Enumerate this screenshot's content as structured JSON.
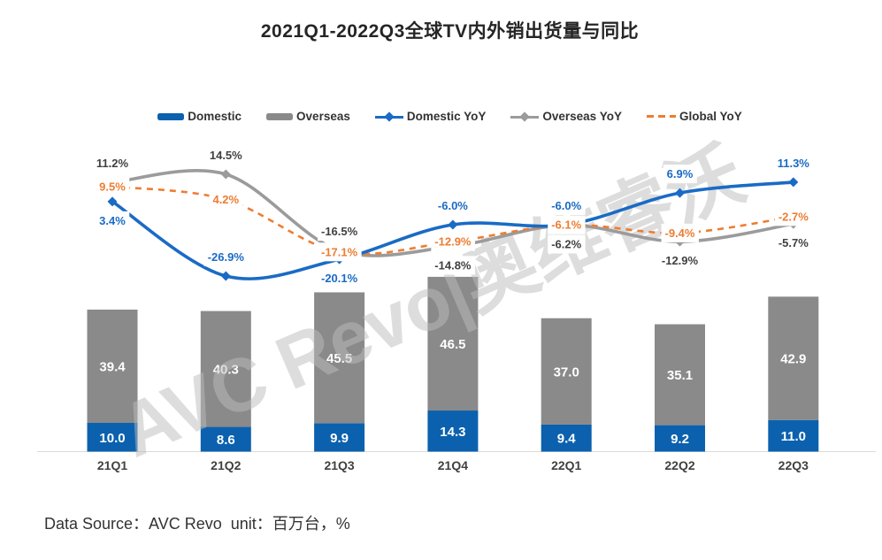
{
  "title": "2021Q1-2022Q3全球TV内外销出货量与同比",
  "watermark": "AVC Revo|奥维睿沃",
  "footer": "Data Source：AVC Revo  unit：百万台，%",
  "colors": {
    "domestic_bar": "#0B61AE",
    "overseas_bar": "#8A8A8A",
    "domestic_line": "#1A6BC4",
    "overseas_line": "#9B9B9B",
    "global_line": "#ED7D31",
    "dark_label": "#404040",
    "axis_line": "#D9D9D9",
    "bar_value_text": "#FFFFFF"
  },
  "legend": {
    "items": [
      {
        "label": "Domestic",
        "type": "bar",
        "color": "#0B61AE"
      },
      {
        "label": "Overseas",
        "type": "bar",
        "color": "#8A8A8A"
      },
      {
        "label": "Domestic YoY",
        "type": "line",
        "color": "#1A6BC4"
      },
      {
        "label": "Overseas YoY",
        "type": "line",
        "color": "#9B9B9B"
      },
      {
        "label": "Global YoY",
        "type": "dash",
        "color": "#ED7D31"
      }
    ]
  },
  "chart_data": {
    "type": "bar+line",
    "categories": [
      "21Q1",
      "21Q2",
      "21Q3",
      "21Q4",
      "22Q1",
      "22Q2",
      "22Q3"
    ],
    "series": [
      {
        "name": "Domestic",
        "type": "bar",
        "stack": "total",
        "values": [
          10.0,
          8.6,
          9.9,
          14.3,
          9.4,
          9.2,
          11.0
        ]
      },
      {
        "name": "Overseas",
        "type": "bar",
        "stack": "total",
        "values": [
          39.4,
          40.3,
          45.5,
          46.5,
          37.0,
          35.1,
          42.9
        ]
      },
      {
        "name": "Domestic YoY",
        "type": "line",
        "unit": "%",
        "values": [
          3.4,
          -26.9,
          -20.1,
          -6.0,
          -6.0,
          6.9,
          11.3
        ],
        "label_pos": [
          "below",
          "above",
          "below",
          "above",
          "above",
          "above",
          "above"
        ]
      },
      {
        "name": "Overseas YoY",
        "type": "line",
        "unit": "%",
        "values": [
          11.2,
          14.5,
          -16.5,
          -14.8,
          -6.2,
          -12.9,
          -5.7
        ],
        "label_pos": [
          "above",
          "above",
          "above",
          "below",
          "below",
          "below",
          "below"
        ]
      },
      {
        "name": "Global YoY",
        "type": "line",
        "dashed": true,
        "unit": "%",
        "values": [
          9.5,
          4.2,
          -17.1,
          -12.9,
          -6.1,
          -9.4,
          -2.7
        ],
        "label_pos": [
          "center",
          "center",
          "center",
          "center",
          "center",
          "center",
          "center"
        ]
      }
    ],
    "ylabel": "",
    "xlabel": "",
    "legend_position": "top",
    "grid": false
  }
}
